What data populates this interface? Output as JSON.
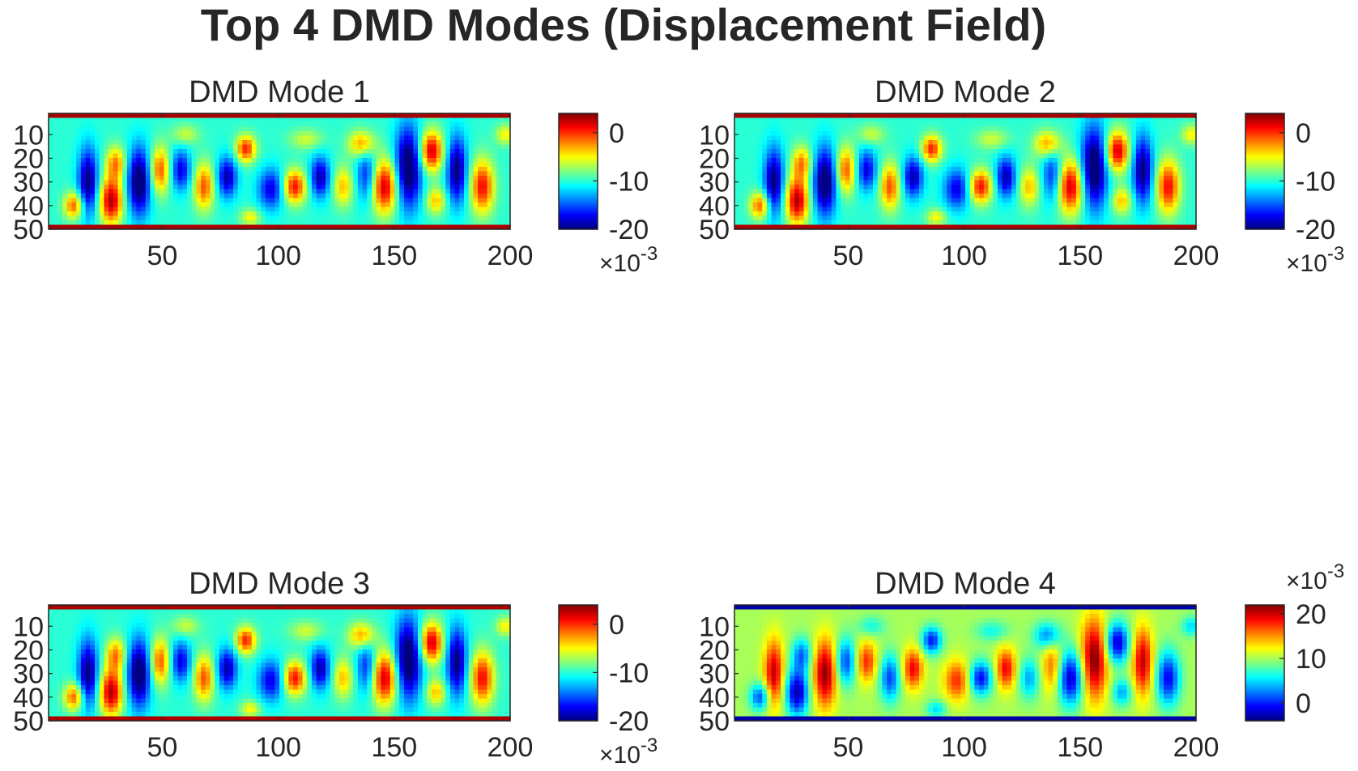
{
  "figure": {
    "title": "Top 4 DMD Modes (Displacement Field)",
    "colormap": "jet"
  },
  "chart_data": [
    {
      "type": "heatmap",
      "title": "DMD Mode 1",
      "xlim": [
        1,
        200
      ],
      "ylim": [
        1,
        50
      ],
      "y_direction": "reverse",
      "xticks": [
        "50",
        "100",
        "150",
        "200"
      ],
      "yticks": [
        "10",
        "20",
        "30",
        "40",
        "50"
      ],
      "colorbar": {
        "ticks": [
          "0",
          "-10",
          "-20"
        ],
        "clim": [
          -20,
          4
        ],
        "exponent_label": "×10",
        "exponent": "-3",
        "exponent_position": "bottom"
      },
      "sign": 1,
      "base_value": -10,
      "edge_value": 3
    },
    {
      "type": "heatmap",
      "title": "DMD Mode 2",
      "xlim": [
        1,
        200
      ],
      "ylim": [
        1,
        50
      ],
      "y_direction": "reverse",
      "xticks": [
        "50",
        "100",
        "150",
        "200"
      ],
      "yticks": [
        "10",
        "20",
        "30",
        "40",
        "50"
      ],
      "colorbar": {
        "ticks": [
          "0",
          "-10",
          "-20"
        ],
        "clim": [
          -20,
          4
        ],
        "exponent_label": "×10",
        "exponent": "-3",
        "exponent_position": "bottom"
      },
      "sign": 1,
      "base_value": -10,
      "edge_value": 3
    },
    {
      "type": "heatmap",
      "title": "DMD Mode 3",
      "xlim": [
        1,
        200
      ],
      "ylim": [
        1,
        50
      ],
      "y_direction": "reverse",
      "xticks": [
        "50",
        "100",
        "150",
        "200"
      ],
      "yticks": [
        "10",
        "20",
        "30",
        "40",
        "50"
      ],
      "colorbar": {
        "ticks": [
          "0",
          "-10",
          "-20"
        ],
        "clim": [
          -20,
          4
        ],
        "exponent_label": "×10",
        "exponent": "-3",
        "exponent_position": "bottom"
      },
      "sign": 1,
      "base_value": -10,
      "edge_value": 3
    },
    {
      "type": "heatmap",
      "title": "DMD Mode 4",
      "xlim": [
        1,
        200
      ],
      "ylim": [
        1,
        50
      ],
      "y_direction": "reverse",
      "xticks": [
        "50",
        "100",
        "150",
        "200"
      ],
      "yticks": [
        "10",
        "20",
        "30",
        "40",
        "50"
      ],
      "colorbar": {
        "ticks": [
          "20",
          "10",
          "0"
        ],
        "clim": [
          -4,
          22
        ],
        "exponent_label": "×10",
        "exponent": "-3",
        "exponent_position": "top"
      },
      "sign": -1,
      "base_value": 10,
      "edge_value": -3
    }
  ],
  "features": [
    {
      "x": 12,
      "y": 40,
      "a": 0.7,
      "sx": 3,
      "sy": 4
    },
    {
      "x": 18,
      "y": 30,
      "a": -0.8,
      "sx": 3,
      "sy": 10
    },
    {
      "x": 28,
      "y": 38,
      "a": 1.0,
      "sx": 3.5,
      "sy": 7
    },
    {
      "x": 30,
      "y": 22,
      "a": 0.6,
      "sx": 3,
      "sy": 5
    },
    {
      "x": 40,
      "y": 30,
      "a": -0.9,
      "sx": 3.5,
      "sy": 10
    },
    {
      "x": 49,
      "y": 25,
      "a": 0.7,
      "sx": 3,
      "sy": 7
    },
    {
      "x": 58,
      "y": 25,
      "a": -0.6,
      "sx": 3,
      "sy": 6
    },
    {
      "x": 68,
      "y": 32,
      "a": 0.7,
      "sx": 3,
      "sy": 7
    },
    {
      "x": 78,
      "y": 28,
      "a": -0.7,
      "sx": 3,
      "sy": 6
    },
    {
      "x": 86,
      "y": 16,
      "a": 0.8,
      "sx": 3,
      "sy": 4
    },
    {
      "x": 88,
      "y": 45,
      "a": 0.4,
      "sx": 3,
      "sy": 2.5
    },
    {
      "x": 97,
      "y": 33,
      "a": -0.6,
      "sx": 4,
      "sy": 6
    },
    {
      "x": 107,
      "y": 32,
      "a": 0.85,
      "sx": 3.5,
      "sy": 5
    },
    {
      "x": 118,
      "y": 28,
      "a": -0.7,
      "sx": 3,
      "sy": 6
    },
    {
      "x": 128,
      "y": 32,
      "a": 0.5,
      "sx": 3,
      "sy": 6
    },
    {
      "x": 136,
      "y": 14,
      "a": 0.6,
      "sx": 4,
      "sy": 4
    },
    {
      "x": 138,
      "y": 27,
      "a": -0.5,
      "sx": 3,
      "sy": 8
    },
    {
      "x": 146,
      "y": 32,
      "a": 0.95,
      "sx": 4,
      "sy": 8
    },
    {
      "x": 156,
      "y": 24,
      "a": -0.95,
      "sx": 4,
      "sy": 12
    },
    {
      "x": 166,
      "y": 17,
      "a": 0.95,
      "sx": 3.5,
      "sy": 6
    },
    {
      "x": 168,
      "y": 38,
      "a": 0.5,
      "sx": 3,
      "sy": 4
    },
    {
      "x": 177,
      "y": 25,
      "a": -0.8,
      "sx": 3,
      "sy": 10
    },
    {
      "x": 188,
      "y": 32,
      "a": 0.85,
      "sx": 3.5,
      "sy": 8
    },
    {
      "x": 198,
      "y": 10,
      "a": 0.4,
      "sx": 3,
      "sy": 3
    },
    {
      "x": 60,
      "y": 10,
      "a": 0.3,
      "sx": 4,
      "sy": 3
    },
    {
      "x": 112,
      "y": 12,
      "a": 0.3,
      "sx": 5,
      "sy": 3
    }
  ]
}
